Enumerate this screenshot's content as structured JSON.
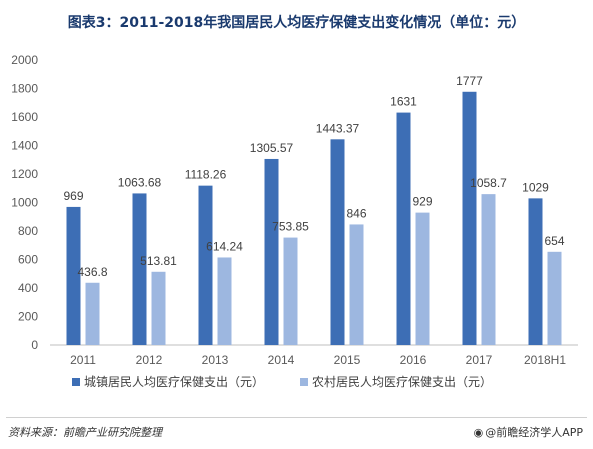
{
  "title": "图表3：2011-2018年我国居民人均医疗保健支出变化情况（单位：元）",
  "chart_data": {
    "type": "bar",
    "categories": [
      "2011",
      "2012",
      "2013",
      "2014",
      "2015",
      "2016",
      "2017",
      "2018H1"
    ],
    "series": [
      {
        "name": "城镇居民人均医疗保健支出（元）",
        "values": [
          969,
          1063.68,
          1118.26,
          1305.57,
          1443.37,
          1631,
          1777,
          1029
        ],
        "labels": [
          "969",
          "1063.68",
          "1118.26",
          "1305.57",
          "1443.37",
          "1631",
          "1777",
          "1029"
        ],
        "color": "#3d6eb5"
      },
      {
        "name": "农村居民人均医疗保健支出（元）",
        "values": [
          436.8,
          513.81,
          614.24,
          753.85,
          846,
          929,
          1058.7,
          654
        ],
        "labels": [
          "436.8",
          "513.81",
          "614.24",
          "753.85",
          "846",
          "929",
          "1058.7",
          "654"
        ],
        "color": "#9db7e0"
      }
    ],
    "ylim": [
      0,
      2000
    ],
    "yticks": [
      "0",
      "200",
      "400",
      "600",
      "800",
      "1000",
      "1200",
      "1400",
      "1600",
      "1800",
      "2000"
    ],
    "legend_position": "bottom",
    "grid": false
  },
  "footer": {
    "source": "资料来源：前瞻产业研究院整理",
    "credit_icon": "weibo-icon",
    "credit": "@前瞻经济学人APP"
  }
}
